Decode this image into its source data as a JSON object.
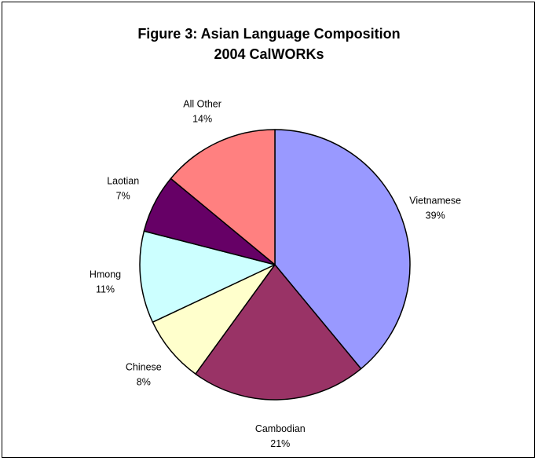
{
  "chart_data": {
    "type": "pie",
    "title_lines": [
      "Figure 3: Asian Language Composition",
      "2004 CalWORKs"
    ],
    "slices": [
      {
        "label": "Vietnamese",
        "percent_label": "39%",
        "value": 39,
        "color": "#9999ff"
      },
      {
        "label": "Cambodian",
        "percent_label": "21%",
        "value": 21,
        "color": "#993366"
      },
      {
        "label": "Chinese",
        "percent_label": "8%",
        "value": 8,
        "color": "#ffffcc"
      },
      {
        "label": "Hmong",
        "percent_label": "11%",
        "value": 11,
        "color": "#ccffff"
      },
      {
        "label": "Laotian",
        "percent_label": "7%",
        "value": 7,
        "color": "#660066"
      },
      {
        "label": "All Other",
        "percent_label": "14%",
        "value": 14,
        "color": "#ff8080"
      }
    ],
    "start": "12 o'clock",
    "direction": "clockwise",
    "legend": "none"
  }
}
